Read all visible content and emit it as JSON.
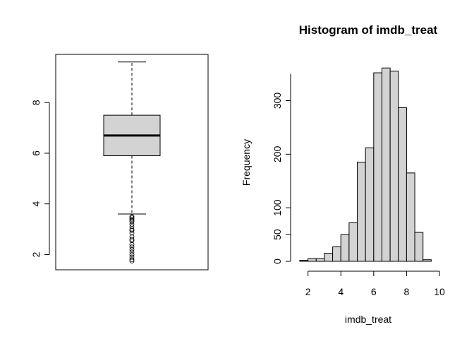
{
  "chart_data": [
    {
      "type": "boxplot",
      "title": "",
      "xlabel": "",
      "ylabel": "",
      "ylim": [
        1.4,
        9.9
      ],
      "y_ticks": [
        2,
        4,
        6,
        8
      ],
      "y_tick_labels": [
        "2",
        "4",
        "6",
        "8"
      ],
      "box": {
        "min_whisker": 3.6,
        "q1": 5.9,
        "median": 6.7,
        "q3": 7.5,
        "max_whisker": 9.6
      },
      "outliers": [
        3.5,
        3.45,
        3.4,
        3.35,
        3.3,
        3.2,
        3.1,
        3.0,
        2.95,
        2.85,
        2.7,
        2.6,
        2.55,
        2.4,
        2.3,
        2.2,
        2.1,
        2.0,
        1.9,
        1.8,
        1.75
      ],
      "fill_color": "#d3d3d3",
      "border_color": "#000000"
    },
    {
      "type": "bar",
      "subtype": "histogram",
      "title": "Histogram of imdb_treat",
      "xlabel": "imdb_treat",
      "ylabel": "Frequency",
      "xlim": [
        1.5,
        10
      ],
      "ylim": [
        0,
        360
      ],
      "x_ticks": [
        2,
        4,
        6,
        8,
        10
      ],
      "x_tick_labels": [
        "2",
        "4",
        "6",
        "8",
        "10"
      ],
      "y_ticks": [
        0,
        50,
        100,
        200,
        300
      ],
      "y_tick_labels": [
        "0",
        "50",
        "100",
        "200",
        "300"
      ],
      "bin_edges": [
        1.5,
        2,
        2.5,
        3,
        3.5,
        4,
        4.5,
        5,
        5.5,
        6,
        6.5,
        7,
        7.5,
        8,
        8.5,
        9,
        9.5
      ],
      "values": [
        2,
        5,
        5,
        15,
        27,
        50,
        72,
        185,
        212,
        352,
        361,
        355,
        287,
        165,
        54,
        3
      ],
      "fill_color": "#d3d3d3",
      "border_color": "#000000"
    }
  ]
}
